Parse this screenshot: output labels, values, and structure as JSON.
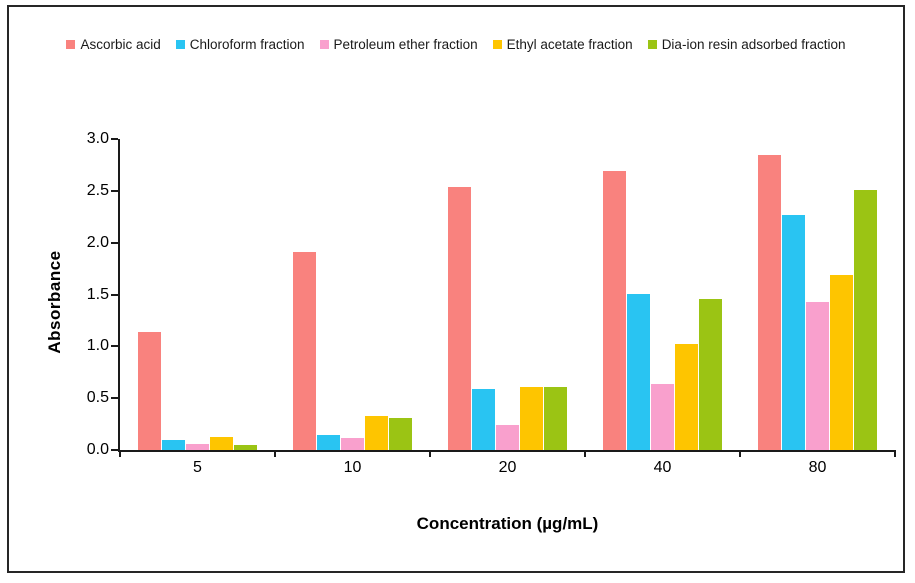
{
  "figure": {
    "background_color": "#ffffff",
    "border_color": "#262626"
  },
  "legend": {
    "position": "top",
    "items": [
      {
        "label": "Ascorbic acid",
        "color": "#F9827E",
        "icon": "legend-swatch-square"
      },
      {
        "label": "Chloroform fraction",
        "color": "#29C4F2",
        "icon": "legend-swatch-square"
      },
      {
        "label": "Petroleum ether fraction",
        "color": "#F9A0CD",
        "icon": "legend-swatch-square"
      },
      {
        "label": "Ethyl acetate fraction",
        "color": "#FEC500",
        "icon": "legend-swatch-square"
      },
      {
        "label": "Dia-ion resin adsorbed fraction",
        "color": "#9BC414",
        "icon": "legend-swatch-square"
      }
    ]
  },
  "chart_data": {
    "type": "bar",
    "title": "",
    "xlabel": "Concentration (µg/mL)",
    "ylabel": "Absorbance",
    "categories": [
      "5",
      "10",
      "20",
      "40",
      "80"
    ],
    "series": [
      {
        "name": "Ascorbic acid",
        "color": "#F9827E",
        "values": [
          1.14,
          1.91,
          2.54,
          2.69,
          2.85
        ]
      },
      {
        "name": "Chloroform fraction",
        "color": "#29C4F2",
        "values": [
          0.1,
          0.14,
          0.59,
          1.5,
          2.27
        ]
      },
      {
        "name": "Petroleum ether fraction",
        "color": "#F9A0CD",
        "values": [
          0.06,
          0.12,
          0.24,
          0.64,
          1.43
        ]
      },
      {
        "name": "Ethyl acetate fraction",
        "color": "#FEC500",
        "values": [
          0.13,
          0.33,
          0.61,
          1.02,
          1.69
        ]
      },
      {
        "name": "Dia-ion resin adsorbed fraction",
        "color": "#9BC414",
        "values": [
          0.05,
          0.31,
          0.61,
          1.46,
          2.51
        ]
      }
    ],
    "ylim": [
      0,
      3.0
    ],
    "ytick_step": 0.5,
    "ytick_labels": [
      "0.0",
      "0.5",
      "1.0",
      "1.5",
      "2.0",
      "2.5",
      "3.0"
    ],
    "grid": false,
    "legend_position": "top"
  }
}
